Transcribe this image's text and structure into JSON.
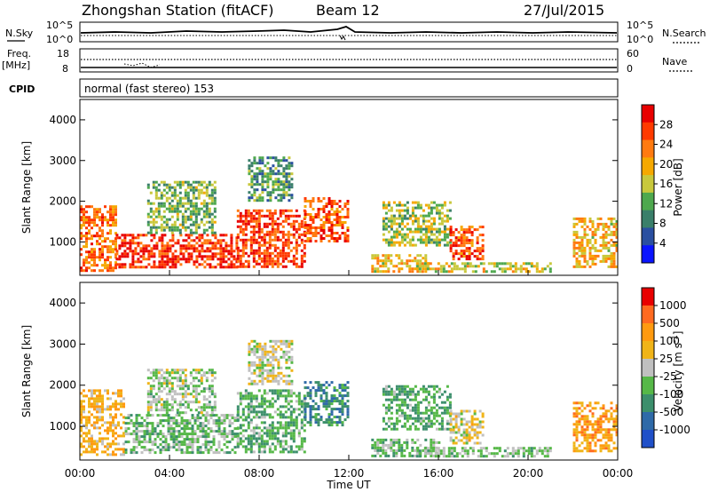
{
  "header": {
    "station": "Zhongshan Station (fitACF)",
    "beam": "Beam 12",
    "date": "27/Jul/2015"
  },
  "noise_panel": {
    "left_label": "N.Sky",
    "right_label": "N.Search",
    "left_ticks": [
      "10^5",
      "10^0"
    ],
    "right_ticks": [
      "10^5",
      "10^0"
    ]
  },
  "freq_panel": {
    "left_label_1": "Freq.",
    "left_label_2": "[MHz]",
    "right_label": "Nave",
    "left_ticks": [
      "18",
      "8"
    ],
    "right_ticks": [
      "60",
      "0"
    ]
  },
  "cpid_panel": {
    "label": "CPID",
    "mode_text": "normal (fast stereo) 153"
  },
  "colors": {
    "power_scale": [
      "#0a14ff",
      "#2a4fa0",
      "#3a7f6a",
      "#4ea84e",
      "#c8c83c",
      "#f5a800",
      "#ff7a10",
      "#ff3a00",
      "#e80000"
    ],
    "velocity_scale": [
      "#2050c8",
      "#2f6aa8",
      "#3c8f6c",
      "#56b848",
      "#c0c0c0",
      "#f0b418",
      "#ff9a10",
      "#ff6a20",
      "#e80000"
    ]
  },
  "chart_data": [
    {
      "type": "heatmap",
      "name": "power",
      "ylabel": "Slant Range [km]",
      "yticks": [
        "1000",
        "2000",
        "3000",
        "4000"
      ],
      "ylim": [
        180,
        4500
      ],
      "xticks": [
        "00:00",
        "04:00",
        "08:00",
        "12:00",
        "16:00",
        "20:00",
        "00:00"
      ],
      "xlim": [
        0,
        24
      ],
      "colorbar": {
        "label": "Power [dB]",
        "ticks": [
          "4",
          "8",
          "12",
          "16",
          "20",
          "24",
          "28"
        ],
        "range": [
          0,
          30
        ]
      },
      "echo_regions": [
        {
          "t_start": 0.0,
          "t_end": 1.6,
          "r_min": 300,
          "r_max": 1900,
          "value": 22
        },
        {
          "t_start": 1.6,
          "t_end": 7.0,
          "r_min": 350,
          "r_max": 1200,
          "value": 26
        },
        {
          "t_start": 3.0,
          "t_end": 6.0,
          "r_min": 1200,
          "r_max": 2500,
          "value": 12
        },
        {
          "t_start": 7.0,
          "t_end": 10.0,
          "r_min": 400,
          "r_max": 1800,
          "value": 25
        },
        {
          "t_start": 7.5,
          "t_end": 9.5,
          "r_min": 2000,
          "r_max": 3100,
          "value": 10
        },
        {
          "t_start": 10.0,
          "t_end": 12.0,
          "r_min": 1000,
          "r_max": 2100,
          "value": 24
        },
        {
          "t_start": 13.0,
          "t_end": 15.5,
          "r_min": 250,
          "r_max": 700,
          "value": 18
        },
        {
          "t_start": 13.5,
          "t_end": 16.5,
          "r_min": 900,
          "r_max": 2000,
          "value": 14
        },
        {
          "t_start": 16.5,
          "t_end": 18.0,
          "r_min": 600,
          "r_max": 1400,
          "value": 24
        },
        {
          "t_start": 15.0,
          "t_end": 21.0,
          "r_min": 250,
          "r_max": 500,
          "value": 16
        },
        {
          "t_start": 22.0,
          "t_end": 24.0,
          "r_min": 400,
          "r_max": 1600,
          "value": 18
        }
      ]
    },
    {
      "type": "heatmap",
      "name": "velocity",
      "ylabel": "Slant Range [km]",
      "yticks": [
        "1000",
        "2000",
        "3000",
        "4000"
      ],
      "ylim": [
        180,
        4500
      ],
      "xticks": [
        "00:00",
        "04:00",
        "08:00",
        "12:00",
        "16:00",
        "20:00",
        "00:00"
      ],
      "xlim": [
        0,
        24
      ],
      "xlabel": "Time UT",
      "colorbar": {
        "label": "Velocity [m s^-1]",
        "ticks": [
          "1000",
          "500",
          "100",
          "25",
          "-25",
          "-100",
          "-500",
          "-1000"
        ],
        "range": [
          -1000,
          1000
        ]
      },
      "echo_regions": [
        {
          "t_start": 0.0,
          "t_end": 2.0,
          "r_min": 300,
          "r_max": 1900,
          "value": 300
        },
        {
          "t_start": 2.0,
          "t_end": 7.0,
          "r_min": 350,
          "r_max": 1300,
          "value": -200
        },
        {
          "t_start": 3.0,
          "t_end": 6.0,
          "r_min": 1300,
          "r_max": 2400,
          "value": -100
        },
        {
          "t_start": 7.0,
          "t_end": 10.0,
          "r_min": 400,
          "r_max": 1900,
          "value": -300
        },
        {
          "t_start": 7.5,
          "t_end": 9.5,
          "r_min": 2000,
          "r_max": 3100,
          "value": 50
        },
        {
          "t_start": 10.0,
          "t_end": 12.0,
          "r_min": 1000,
          "r_max": 2100,
          "value": -500
        },
        {
          "t_start": 13.0,
          "t_end": 16.0,
          "r_min": 250,
          "r_max": 700,
          "value": -200
        },
        {
          "t_start": 13.5,
          "t_end": 16.5,
          "r_min": 900,
          "r_max": 2000,
          "value": -300
        },
        {
          "t_start": 16.5,
          "t_end": 18.0,
          "r_min": 600,
          "r_max": 1400,
          "value": 100
        },
        {
          "t_start": 15.0,
          "t_end": 21.0,
          "r_min": 250,
          "r_max": 500,
          "value": -150
        },
        {
          "t_start": 22.0,
          "t_end": 24.0,
          "r_min": 400,
          "r_max": 1600,
          "value": 400
        }
      ]
    }
  ]
}
